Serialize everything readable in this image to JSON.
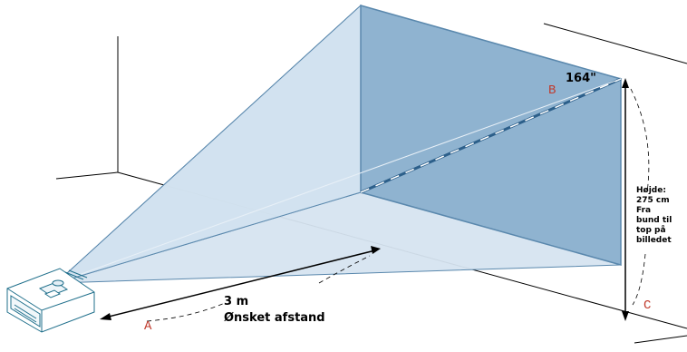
{
  "labels": {
    "diagonal": "164\"",
    "point_a": "A",
    "point_b": "B",
    "point_c": "C",
    "distance": "3 m",
    "distance_caption": "Ønsket afstand",
    "height_lines": [
      "Højde:",
      "275 cm",
      "Fra",
      "bund til",
      "top på",
      "billedet"
    ]
  },
  "colors": {
    "beam_fill": "#c9dcec",
    "screen_fill": "#8fb3d0",
    "screen_stroke": "#5a88ad",
    "line": "#000000",
    "label_letter": "#c0392b",
    "diagonal_dash": "#2c5f8a"
  }
}
